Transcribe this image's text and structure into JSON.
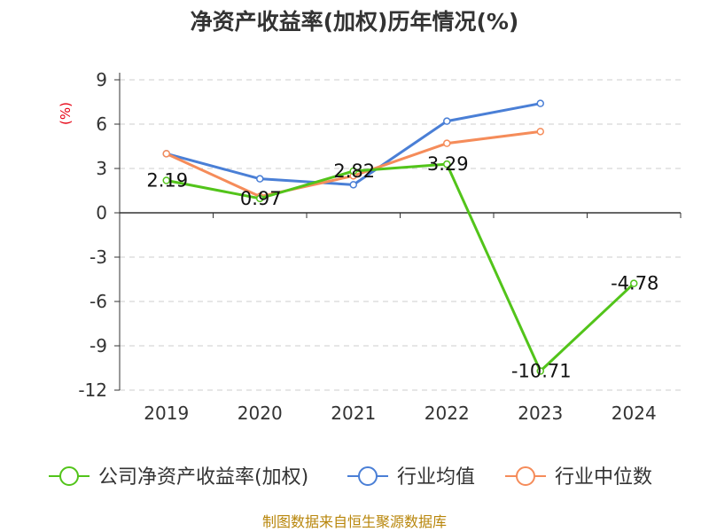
{
  "chart_data": {
    "type": "line",
    "title": "净资产收益率(加权)历年情况(%)",
    "ylabel": "(%)",
    "xlabel": "",
    "categories": [
      "2019",
      "2020",
      "2021",
      "2022",
      "2023",
      "2024"
    ],
    "yticks": [
      "9",
      "6",
      "3",
      "0",
      "-3",
      "-6",
      "-9",
      "-12"
    ],
    "ytick_values": [
      9,
      6,
      3,
      0,
      -3,
      -6,
      -9,
      -12
    ],
    "ylim": [
      -12,
      9
    ],
    "grid": true,
    "legend_position": "bottom",
    "series": [
      {
        "name": "公司净资产收益率(加权)",
        "color": "#52c41a",
        "values": [
          2.19,
          0.97,
          2.82,
          3.29,
          -10.71,
          -4.78
        ],
        "labels": [
          "2.19",
          "0.97",
          "2.82",
          "3.29",
          "-10.71",
          "-4.78"
        ]
      },
      {
        "name": "行业均值",
        "color": "#4a7fd6",
        "values": [
          4.0,
          2.3,
          1.9,
          6.2,
          7.4,
          null
        ],
        "labels": null
      },
      {
        "name": "行业中位数",
        "color": "#f58c5a",
        "values": [
          4.0,
          1.1,
          2.5,
          4.7,
          5.5,
          null
        ],
        "labels": null
      }
    ]
  },
  "source": "制图数据来自恒生聚源数据库"
}
